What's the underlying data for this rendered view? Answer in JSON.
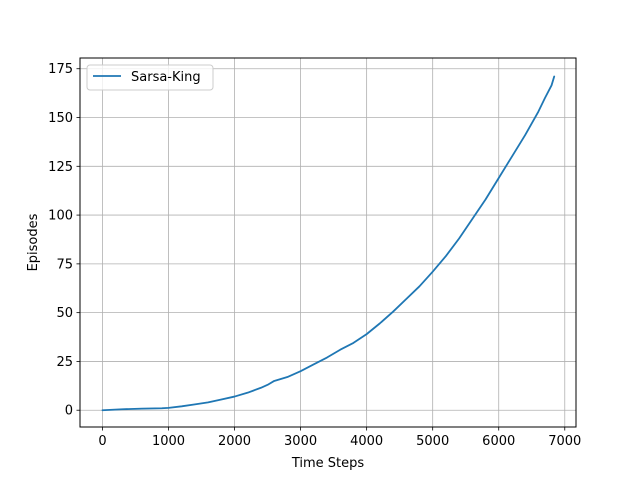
{
  "chart_data": {
    "type": "line",
    "xlabel": "Time Steps",
    "ylabel": "Episodes",
    "xlim": [
      -340,
      7170
    ],
    "ylim": [
      -8.6,
      180.5
    ],
    "xticks": [
      0,
      1000,
      2000,
      3000,
      4000,
      5000,
      6000,
      7000
    ],
    "yticks": [
      0,
      25,
      50,
      75,
      100,
      125,
      150,
      175
    ],
    "xtick_labels": [
      "0",
      "1000",
      "2000",
      "3000",
      "4000",
      "5000",
      "6000",
      "7000"
    ],
    "ytick_labels": [
      "0",
      "25",
      "50",
      "75",
      "100",
      "125",
      "150",
      "175"
    ],
    "grid": true,
    "legend_position": "top-left",
    "colors": {
      "series": "#1f77b4",
      "grid": "#b0b0b0",
      "axes": "#000000"
    },
    "series": [
      {
        "name": "Sarsa-King",
        "x": [
          0,
          300,
          600,
          900,
          1000,
          1200,
          1400,
          1600,
          1800,
          2000,
          2200,
          2400,
          2500,
          2600,
          2800,
          3000,
          3200,
          3400,
          3600,
          3800,
          4000,
          4200,
          4400,
          4600,
          4800,
          5000,
          5200,
          5400,
          5600,
          5800,
          6000,
          6200,
          6400,
          6600,
          6700,
          6800,
          6840
        ],
        "y": [
          0,
          0.5,
          0.8,
          1.0,
          1.2,
          2.0,
          3.0,
          4.0,
          5.5,
          7.0,
          9.0,
          11.5,
          13.0,
          15.0,
          17.0,
          20.0,
          23.5,
          27.0,
          31.0,
          34.5,
          39.0,
          44.5,
          50.5,
          57.0,
          63.5,
          71.0,
          79.0,
          88.0,
          98.0,
          108.0,
          119.0,
          130.0,
          141.0,
          153.0,
          160.0,
          166.5,
          171.0
        ]
      }
    ]
  }
}
